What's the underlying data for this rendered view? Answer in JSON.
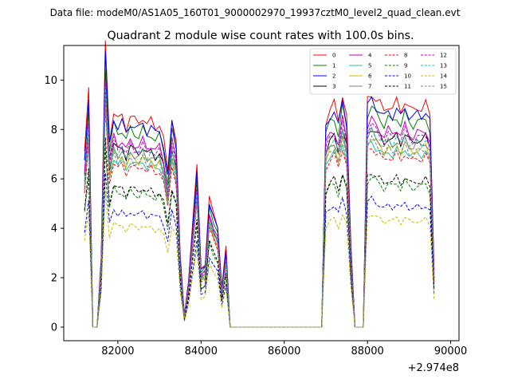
{
  "chart_data": {
    "type": "line",
    "suptitle": "Data file: modeM0/AS1A05_160T01_9000002970_19937cztM0_level2_quad_clean.evt",
    "title": "Quadrant 2 module wise count rates with 100.0s bins.",
    "xlabel": "",
    "ylabel": "",
    "x_offset_label": "+2.974e8",
    "xlim": [
      80700,
      90200
    ],
    "ylim": [
      -0.55,
      11.4
    ],
    "x_ticks": [
      82000,
      84000,
      86000,
      88000,
      90000
    ],
    "x_tick_labels": [
      "82000",
      "84000",
      "86000",
      "88000",
      "90000"
    ],
    "y_ticks": [
      0,
      2,
      4,
      6,
      8,
      10
    ],
    "y_tick_labels": [
      "0",
      "2",
      "4",
      "6",
      "8",
      "10"
    ],
    "legend_position": "top-right",
    "x": [
      81200,
      81300,
      81400,
      81500,
      81600,
      81700,
      81800,
      81900,
      82000,
      82100,
      82200,
      82300,
      82400,
      82500,
      82600,
      82700,
      82800,
      82900,
      83000,
      83100,
      83200,
      83300,
      83400,
      83500,
      83600,
      83700,
      83800,
      83900,
      84000,
      84100,
      84200,
      84300,
      84400,
      84500,
      84600,
      84700,
      84800,
      84900,
      85000,
      85100,
      85200,
      85300,
      85400,
      85500,
      85600,
      85700,
      85800,
      85900,
      86000,
      86100,
      86200,
      86300,
      86400,
      86500,
      86600,
      86700,
      86800,
      86900,
      87000,
      87100,
      87200,
      87300,
      87400,
      87500,
      87600,
      87700,
      87800,
      87900,
      88000,
      88100,
      88200,
      88300,
      88400,
      88500,
      88600,
      88700,
      88800,
      88900,
      89000,
      89100,
      89200,
      89300,
      89400,
      89500,
      89600
    ],
    "profile": [
      0.75,
      1.0,
      0.0,
      0.0,
      0.3,
      1.2,
      0.8,
      0.92,
      0.88,
      0.9,
      0.85,
      0.9,
      0.88,
      0.87,
      0.9,
      0.86,
      0.88,
      0.85,
      0.87,
      0.8,
      0.66,
      0.9,
      0.8,
      0.3,
      0.05,
      0.2,
      0.45,
      0.68,
      0.25,
      0.27,
      0.55,
      0.48,
      0.43,
      0.17,
      0.34,
      0.0,
      0.0,
      0.0,
      0.0,
      0.0,
      0.0,
      0.0,
      0.0,
      0.0,
      0.0,
      0.0,
      0.0,
      0.0,
      0.0,
      0.0,
      0.0,
      0.0,
      0.0,
      0.0,
      0.0,
      0.0,
      0.0,
      0.0,
      0.88,
      0.93,
      0.95,
      0.88,
      1.0,
      0.9,
      0.35,
      0.0,
      0.0,
      0.0,
      0.97,
      1.0,
      0.97,
      0.95,
      0.92,
      0.95,
      0.93,
      0.96,
      0.92,
      0.97,
      0.93,
      0.92,
      0.94,
      0.93,
      0.95,
      0.9,
      0.25
    ],
    "series": [
      {
        "name": "0",
        "color": "#ff0000",
        "dash": false,
        "level": 9.5
      },
      {
        "name": "1",
        "color": "#008000",
        "dash": false,
        "level": 8.9
      },
      {
        "name": "2",
        "color": "#0000ff",
        "dash": false,
        "level": 9.2
      },
      {
        "name": "3",
        "color": "#000000",
        "dash": false,
        "level": 8.1
      },
      {
        "name": "4",
        "color": "#bf00bf",
        "dash": false,
        "level": 8.4
      },
      {
        "name": "5",
        "color": "#1fbfa8",
        "dash": false,
        "level": 7.5
      },
      {
        "name": "6",
        "color": "#bfbf00",
        "dash": false,
        "level": 7.7
      },
      {
        "name": "7",
        "color": "#808080",
        "dash": false,
        "level": 7.9
      },
      {
        "name": "8",
        "color": "#ff0000",
        "dash": true,
        "level": 7.3
      },
      {
        "name": "9",
        "color": "#008000",
        "dash": true,
        "level": 6.1
      },
      {
        "name": "10",
        "color": "#0000ff",
        "dash": true,
        "level": 5.2
      },
      {
        "name": "11",
        "color": "#000000",
        "dash": true,
        "level": 6.3
      },
      {
        "name": "12",
        "color": "#bf00bf",
        "dash": true,
        "level": 8.2
      },
      {
        "name": "13",
        "color": "#1fbfa8",
        "dash": true,
        "level": 8.0
      },
      {
        "name": "14",
        "color": "#bfbf00",
        "dash": true,
        "level": 4.6
      },
      {
        "name": "15",
        "color": "#808080",
        "dash": true,
        "level": 7.6
      }
    ]
  }
}
